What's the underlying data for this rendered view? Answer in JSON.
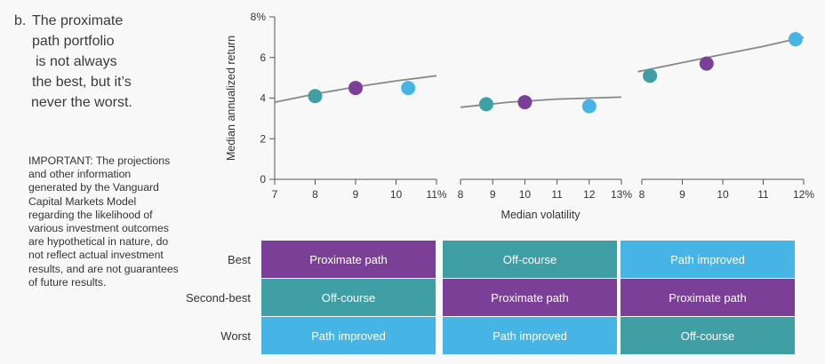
{
  "subtitle": {
    "letter": "b.",
    "lines": [
      "The proximate",
      "path portfolio",
      "is not always",
      "the best, but it’s",
      "never the worst."
    ]
  },
  "important_note": "IMPORTANT: The projections and other information generated by the Vanguard Capital Markets Model regarding the likelihood of various investment outcomes are hypothetical in nature, do not reflect actual investment results, and are not guarantees of future results.",
  "colors": {
    "proximate": "#7b3f98",
    "offcourse": "#3f9fa5",
    "improved": "#46b5e5",
    "line": "#888888",
    "axis": "#555555"
  },
  "chart_data": {
    "type": "scatter",
    "ylabel": "Median annualized return",
    "xlabel": "Median volatility",
    "ylim": [
      0,
      8
    ],
    "yticks": [
      0,
      2,
      4,
      6,
      8
    ],
    "ytick_labels": [
      "0",
      "2",
      "4",
      "6",
      "8%"
    ],
    "panels": [
      {
        "xlim": [
          7,
          11
        ],
        "xticks": [
          7,
          8,
          9,
          10,
          11
        ],
        "xtick_labels": [
          "7",
          "8",
          "9",
          "10",
          "11%"
        ],
        "points": [
          {
            "x": 8.0,
            "y": 4.1,
            "category": "offcourse"
          },
          {
            "x": 9.0,
            "y": 4.5,
            "category": "proximate"
          },
          {
            "x": 10.3,
            "y": 4.5,
            "category": "improved"
          }
        ],
        "curve": [
          [
            7.0,
            3.8
          ],
          [
            8.0,
            4.2
          ],
          [
            9.0,
            4.55
          ],
          [
            10.0,
            4.85
          ],
          [
            11.0,
            5.1
          ]
        ]
      },
      {
        "xlim": [
          8,
          13
        ],
        "xticks": [
          8,
          9,
          10,
          11,
          12,
          13
        ],
        "xtick_labels": [
          "8",
          "9",
          "10",
          "11",
          "12",
          "13%"
        ],
        "points": [
          {
            "x": 8.8,
            "y": 3.7,
            "category": "offcourse"
          },
          {
            "x": 10.0,
            "y": 3.8,
            "category": "proximate"
          },
          {
            "x": 12.0,
            "y": 3.6,
            "category": "improved"
          }
        ],
        "curve": [
          [
            8.0,
            3.55
          ],
          [
            9.5,
            3.8
          ],
          [
            11.0,
            3.95
          ],
          [
            13.0,
            4.05
          ]
        ]
      },
      {
        "xlim": [
          8,
          12
        ],
        "xticks": [
          8,
          9,
          10,
          11,
          12
        ],
        "xtick_labels": [
          "8",
          "9",
          "10",
          "11",
          "12%"
        ],
        "points": [
          {
            "x": 8.2,
            "y": 5.1,
            "category": "offcourse"
          },
          {
            "x": 9.6,
            "y": 5.7,
            "category": "proximate"
          },
          {
            "x": 11.8,
            "y": 6.9,
            "category": "improved"
          }
        ],
        "curve": [
          [
            7.9,
            5.3
          ],
          [
            9.0,
            5.75
          ],
          [
            10.0,
            6.15
          ],
          [
            11.0,
            6.55
          ],
          [
            12.0,
            7.0
          ]
        ]
      }
    ]
  },
  "table": {
    "row_labels": [
      "Best",
      "Second-best",
      "Worst"
    ],
    "columns": [
      [
        {
          "label": "Proximate path",
          "category": "proximate"
        },
        {
          "label": "Off-course",
          "category": "offcourse"
        },
        {
          "label": "Path improved",
          "category": "improved"
        }
      ],
      [
        {
          "label": "Off-course",
          "category": "offcourse"
        },
        {
          "label": "Proximate path",
          "category": "proximate"
        },
        {
          "label": "Path improved",
          "category": "improved"
        }
      ],
      [
        {
          "label": "Path improved",
          "category": "improved"
        },
        {
          "label": "Proximate path",
          "category": "proximate"
        },
        {
          "label": "Off-course",
          "category": "offcourse"
        }
      ]
    ]
  }
}
